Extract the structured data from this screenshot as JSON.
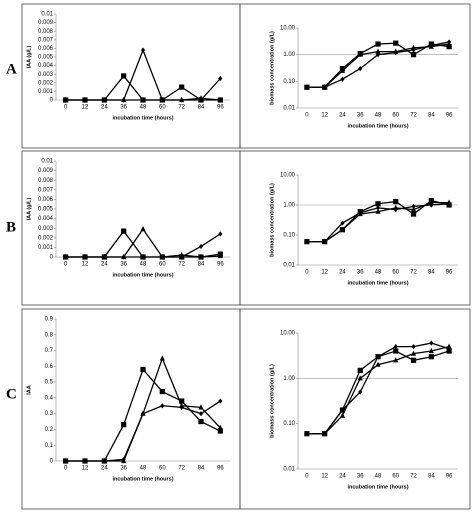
{
  "panel_labels": [
    "A",
    "B",
    "C"
  ],
  "chart_data": [
    {
      "type": "line",
      "ylabel": "IAA (g/L)",
      "xlabel": "incubation time (hours)",
      "categories": [
        "0",
        "12",
        "24",
        "36",
        "48",
        "60",
        "72",
        "84",
        "96"
      ],
      "ylim": [
        0,
        0.01
      ],
      "yticks": [
        0,
        0.001,
        0.002,
        0.003,
        0.004,
        0.005,
        0.006,
        0.007,
        0.008,
        0.009,
        0.01
      ],
      "log": false,
      "series": [
        {
          "marker": "diamond",
          "color": "#000000",
          "values": [
            0,
            0,
            0,
            0,
            0.0058,
            0,
            0,
            0,
            0.0025
          ]
        },
        {
          "marker": "square",
          "color": "#000000",
          "values": [
            0,
            0,
            0,
            0.0028,
            0,
            0,
            0.0015,
            0,
            0
          ]
        },
        {
          "marker": "triangle",
          "color": "#000000",
          "values": [
            0,
            0,
            0,
            0,
            0,
            0,
            0,
            0.0002,
            0
          ]
        }
      ]
    },
    {
      "type": "line",
      "ylabel": "biomass concentration (g/L)",
      "xlabel": "incubation time (hours)",
      "categories": [
        "0",
        "12",
        "24",
        "36",
        "48",
        "60",
        "72",
        "84",
        "96"
      ],
      "ylim": [
        0.01,
        10
      ],
      "yticks": [
        {
          "value": 0.01,
          "label": "0.01"
        },
        {
          "value": 0.1,
          "label": "0.10"
        },
        {
          "value": 1,
          "label": "1.00"
        },
        {
          "value": 10,
          "label": "10.00"
        }
      ],
      "log": true,
      "reference_line": 1,
      "series": [
        {
          "marker": "diamond",
          "color": "#000000",
          "values": [
            0.06,
            0.06,
            0.12,
            0.3,
            1.0,
            1.2,
            1.5,
            2.2,
            3.0
          ]
        },
        {
          "marker": "square",
          "color": "#000000",
          "values": [
            0.06,
            0.06,
            0.3,
            1.1,
            2.5,
            2.7,
            1.0,
            2.5,
            2.0
          ]
        },
        {
          "marker": "triangle",
          "color": "#000000",
          "values": [
            0.06,
            0.06,
            0.25,
            1.0,
            1.3,
            1.3,
            1.8,
            2.0,
            2.5
          ]
        }
      ]
    },
    {
      "type": "line",
      "ylabel": "IAA (g/L)",
      "xlabel": "incubation time (hours)",
      "categories": [
        "0",
        "12",
        "24",
        "36",
        "48",
        "60",
        "72",
        "84",
        "96"
      ],
      "ylim": [
        0,
        0.01
      ],
      "yticks": [
        0,
        0.001,
        0.002,
        0.003,
        0.004,
        0.005,
        0.006,
        0.007,
        0.008,
        0.009,
        0.01
      ],
      "log": false,
      "series": [
        {
          "marker": "diamond",
          "color": "#000000",
          "values": [
            0,
            0,
            0,
            0,
            0,
            0,
            0,
            0.0011,
            0.0024
          ]
        },
        {
          "marker": "square",
          "color": "#000000",
          "values": [
            0,
            0,
            0,
            0.0027,
            0,
            0,
            0,
            0,
            0.0003
          ]
        },
        {
          "marker": "triangle",
          "color": "#000000",
          "values": [
            0,
            0,
            0,
            0,
            0.0029,
            0,
            0.0002,
            0,
            0.0001
          ]
        }
      ]
    },
    {
      "type": "line",
      "ylabel": "biomass concentration (g/L)",
      "xlabel": "incubation time (hours)",
      "categories": [
        "0",
        "12",
        "24",
        "36",
        "48",
        "60",
        "72",
        "84",
        "96"
      ],
      "ylim": [
        0.01,
        10
      ],
      "yticks": [
        {
          "value": 0.01,
          "label": "0.01"
        },
        {
          "value": 0.1,
          "label": "0.10"
        },
        {
          "value": 1,
          "label": "1.00"
        },
        {
          "value": 10,
          "label": "10.00"
        }
      ],
      "log": true,
      "reference_line": 1,
      "series": [
        {
          "marker": "diamond",
          "color": "#000000",
          "values": [
            0.06,
            0.06,
            0.25,
            0.55,
            0.8,
            0.7,
            0.9,
            1.0,
            1.1
          ]
        },
        {
          "marker": "square",
          "color": "#000000",
          "values": [
            0.06,
            0.06,
            0.15,
            0.6,
            1.1,
            1.3,
            0.5,
            1.4,
            1.0
          ]
        },
        {
          "marker": "triangle",
          "color": "#000000",
          "values": [
            0.06,
            0.06,
            0.15,
            0.5,
            0.6,
            0.8,
            0.7,
            1.2,
            1.2
          ]
        }
      ]
    },
    {
      "type": "line",
      "ylabel": "IAA",
      "xlabel": "incubation time (hours)",
      "categories": [
        "0",
        "12",
        "24",
        "36",
        "48",
        "60",
        "72",
        "84",
        "96"
      ],
      "ylim": [
        0,
        0.9
      ],
      "yticks": [
        0,
        0.1,
        0.2,
        0.3,
        0.4,
        0.5,
        0.6,
        0.7,
        0.8,
        0.9
      ],
      "log": false,
      "series": [
        {
          "marker": "diamond",
          "color": "#000000",
          "values": [
            0,
            0,
            0,
            0.01,
            0.3,
            0.35,
            0.34,
            0.3,
            0.38
          ]
        },
        {
          "marker": "square",
          "color": "#000000",
          "values": [
            0,
            0,
            0,
            0.23,
            0.58,
            0.44,
            0.38,
            0.25,
            0.19
          ]
        },
        {
          "marker": "triangle",
          "color": "#000000",
          "values": [
            0,
            0,
            0,
            0,
            0.3,
            0.65,
            0.35,
            0.34,
            0.21
          ]
        }
      ]
    },
    {
      "type": "line",
      "ylabel": "biomass concentration (g/L)",
      "xlabel": "incubation time (hours)",
      "categories": [
        "0",
        "12",
        "24",
        "36",
        "48",
        "60",
        "72",
        "84",
        "96"
      ],
      "ylim": [
        0.01,
        10
      ],
      "yticks": [
        {
          "value": 0.01,
          "label": "0.01"
        },
        {
          "value": 0.1,
          "label": "0.10"
        },
        {
          "value": 1,
          "label": "1.00"
        },
        {
          "value": 10,
          "label": "10.00"
        }
      ],
      "log": true,
      "reference_line": 1,
      "series": [
        {
          "marker": "diamond",
          "color": "#000000",
          "values": [
            0.06,
            0.06,
            0.2,
            0.5,
            3,
            5,
            5,
            6,
            4.5
          ]
        },
        {
          "marker": "square",
          "color": "#000000",
          "values": [
            0.06,
            0.06,
            0.2,
            1.5,
            3,
            4,
            2.5,
            3,
            4
          ]
        },
        {
          "marker": "triangle",
          "color": "#000000",
          "values": [
            0.06,
            0.06,
            0.15,
            1.0,
            2,
            2.5,
            3.5,
            4,
            5
          ]
        }
      ]
    }
  ]
}
